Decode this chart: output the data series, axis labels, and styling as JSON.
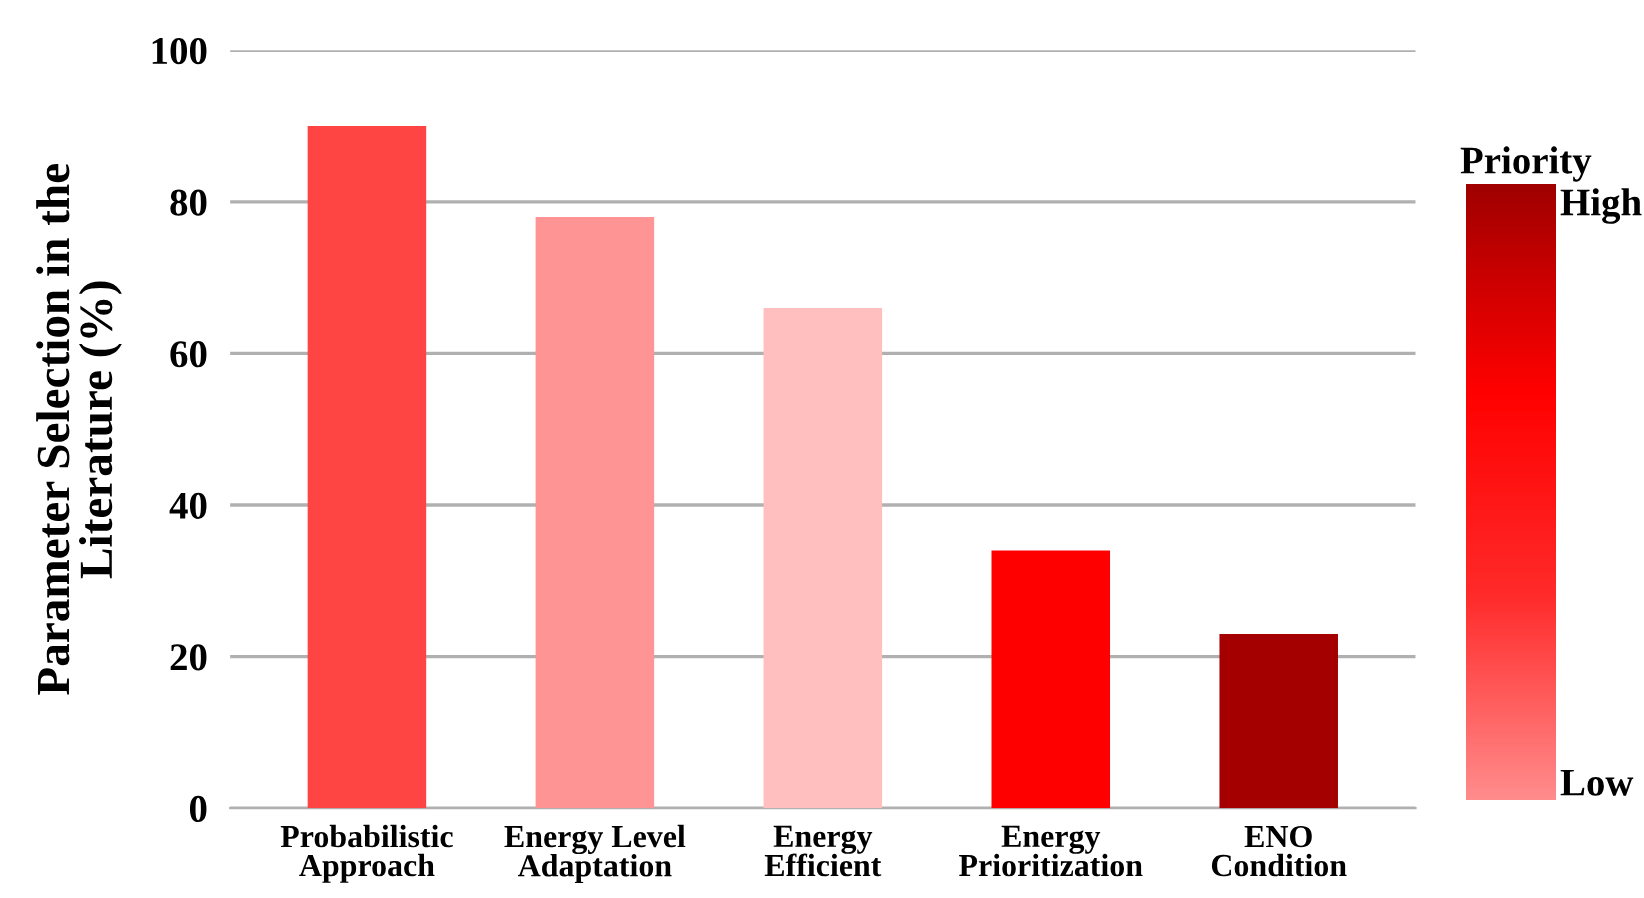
{
  "chart_data": {
    "type": "bar",
    "ylabel": "Parameter Selection in the\nLiterature (%)",
    "categories": [
      "Probabilistic\nApproach",
      "Energy Level\nAdaptation",
      "Energy\nEfficient",
      "Energy\nPrioritization",
      "ENO\nCondition"
    ],
    "values": [
      90,
      78,
      66,
      34,
      23
    ],
    "colors": [
      "#ff4444",
      "#ff9494",
      "#ffbfbf",
      "#ff0000",
      "#a50000"
    ],
    "ylim": [
      0,
      100
    ],
    "yticks": [
      0,
      20,
      40,
      60,
      80,
      100
    ],
    "grid": "y",
    "annotations": [
      "Priority",
      "High",
      "Low"
    ]
  }
}
